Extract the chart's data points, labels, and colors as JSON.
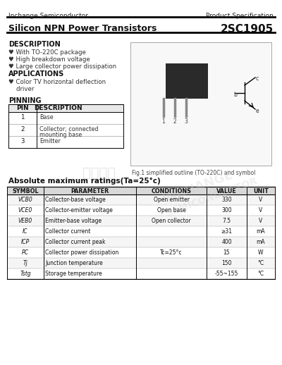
{
  "header_left": "Inchange Semiconductor",
  "header_right": "Product Specification",
  "title_left": "Silicon NPN Power Transistors",
  "title_right": "2SC1905",
  "desc_title": "DESCRIPTION",
  "desc_bullet": "♥",
  "desc_items": [
    "♥ With TO-220C package",
    "♥ High breakdown voltage",
    "♥ Large collector power dissipation"
  ],
  "app_title": "APPLICATIONS",
  "app_items": [
    "♥ Color TV horizontal deflection",
    "    driver"
  ],
  "pin_title": "PINNING",
  "pin_col1": "PIN",
  "pin_col2": "DESCRIPTION",
  "pin_rows": [
    [
      "1",
      "Base"
    ],
    [
      "2",
      "Collector; connected\nmounting base"
    ],
    [
      "3",
      "Emitter"
    ]
  ],
  "fig_caption": "Fig.1 simplified outline (TO-220C) and symbol",
  "abs_title": "Absolute maximum ratings(Ta=25°c)",
  "tbl_headers": [
    "SYMBOL",
    "PARAMETER",
    "CONDITIONS",
    "VALUE",
    "UNIT"
  ],
  "tbl_rows": [
    [
      "VCB0",
      "Collector-base voltage",
      "Open emitter",
      "330",
      "V"
    ],
    [
      "VCE0",
      "Collector-emitter voltage",
      "Open base",
      "300",
      "V"
    ],
    [
      "VEB0",
      "Emitter-base voltage",
      "Open collector",
      "7.5",
      "V"
    ],
    [
      "IC",
      "Collector current",
      "",
      "≥31",
      "mA"
    ],
    [
      "ICP",
      "Collector current peak",
      "",
      "400",
      "mA"
    ],
    [
      "PC",
      "Collector power dissipation",
      "Tc=25°c",
      "15",
      "W"
    ],
    [
      "Tj",
      "Junction temperature",
      "",
      "150",
      "°C"
    ],
    [
      "Tstg",
      "Storage temperature",
      "",
      "-55~155",
      "°C"
    ]
  ],
  "watermark1": "INCHANGE",
  "watermark2": "SEMICONDUCTOR",
  "bg": "#ffffff"
}
